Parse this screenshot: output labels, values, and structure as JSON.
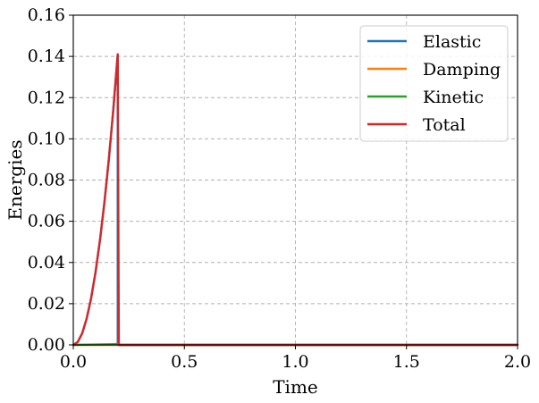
{
  "chart_data": {
    "type": "line",
    "title": "",
    "xlabel": "Time",
    "ylabel": "Energies",
    "xlim": [
      0,
      2.0
    ],
    "ylim": [
      0,
      0.16
    ],
    "grid": true,
    "legend_position": "top-right",
    "x_ticks": [
      "0.0",
      "0.5",
      "1.0",
      "1.5",
      "2.0"
    ],
    "y_ticks": [
      "0.00",
      "0.02",
      "0.04",
      "0.06",
      "0.08",
      "0.10",
      "0.12",
      "0.14",
      "0.16"
    ],
    "series": [
      {
        "name": "Elastic",
        "color": "#1f77b4",
        "x": [
          0,
          0.02,
          0.04,
          0.06,
          0.08,
          0.1,
          0.12,
          0.14,
          0.16,
          0.18,
          0.2,
          0.2,
          0.21,
          2.0
        ],
        "y": [
          0,
          0.0014,
          0.0056,
          0.0127,
          0.0225,
          0.0352,
          0.0507,
          0.069,
          0.0901,
          0.114,
          0.141,
          0.0,
          0.0,
          0.0
        ]
      },
      {
        "name": "Damping",
        "color": "#ff7f0e",
        "x": [
          0,
          2.0
        ],
        "y": [
          0,
          0
        ]
      },
      {
        "name": "Kinetic",
        "color": "#2ca02c",
        "x": [
          0,
          0.1,
          0.2,
          0.21,
          2.0
        ],
        "y": [
          0,
          0.0002,
          0.0004,
          0,
          0
        ]
      },
      {
        "name": "Total",
        "color": "#d62728",
        "x": [
          0,
          0.02,
          0.04,
          0.06,
          0.08,
          0.1,
          0.12,
          0.14,
          0.16,
          0.18,
          0.2,
          0.205,
          0.21,
          2.0
        ],
        "y": [
          0,
          0.0014,
          0.0056,
          0.0127,
          0.0225,
          0.0352,
          0.0507,
          0.069,
          0.0901,
          0.114,
          0.141,
          0.0,
          0.0,
          0.0
        ]
      }
    ]
  }
}
